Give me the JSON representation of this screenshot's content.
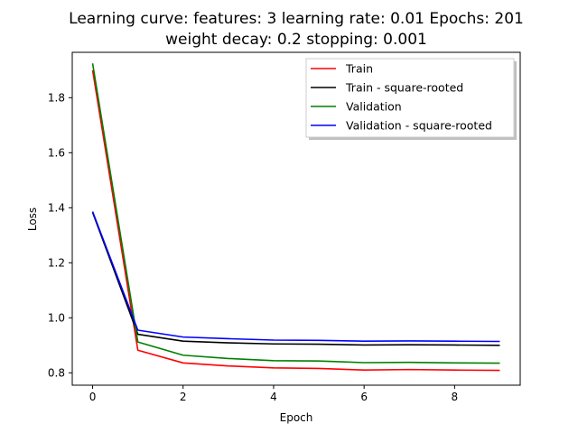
{
  "chart_data": {
    "type": "line",
    "title_line1": "Learning curve: features: 3 learning rate: 0.01 Epochs: 201",
    "title_line2": "weight decay: 0.2 stopping: 0.001",
    "xlabel": "Epoch",
    "ylabel": "Loss",
    "xlim": [
      -0.45,
      9.45
    ],
    "ylim": [
      0.755,
      1.965
    ],
    "x_ticks": [
      0,
      2,
      4,
      6,
      8
    ],
    "x_tick_labels": [
      "0",
      "2",
      "4",
      "6",
      "8"
    ],
    "y_ticks": [
      0.8,
      1.0,
      1.2,
      1.4,
      1.6,
      1.8
    ],
    "y_tick_labels": [
      "0.8",
      "1.0",
      "1.2",
      "1.4",
      "1.6",
      "1.8"
    ],
    "grid": false,
    "legend_position": "top-right",
    "x": [
      0,
      1,
      2,
      3,
      4,
      5,
      6,
      7,
      8,
      9
    ],
    "series": [
      {
        "name": "Train",
        "color": "#ff0000",
        "values": [
          1.9,
          0.882,
          0.836,
          0.825,
          0.818,
          0.816,
          0.81,
          0.812,
          0.81,
          0.809
        ]
      },
      {
        "name": "Train - square-rooted",
        "color": "#000000",
        "values": [
          1.383,
          0.94,
          0.915,
          0.909,
          0.905,
          0.904,
          0.901,
          0.902,
          0.901,
          0.9
        ]
      },
      {
        "name": "Validation",
        "color": "#008000",
        "values": [
          1.925,
          0.912,
          0.864,
          0.852,
          0.844,
          0.843,
          0.837,
          0.838,
          0.836,
          0.835
        ]
      },
      {
        "name": "Validation - square-rooted",
        "color": "#0000ff",
        "values": [
          1.386,
          0.955,
          0.93,
          0.924,
          0.919,
          0.918,
          0.915,
          0.916,
          0.915,
          0.914
        ]
      }
    ]
  }
}
